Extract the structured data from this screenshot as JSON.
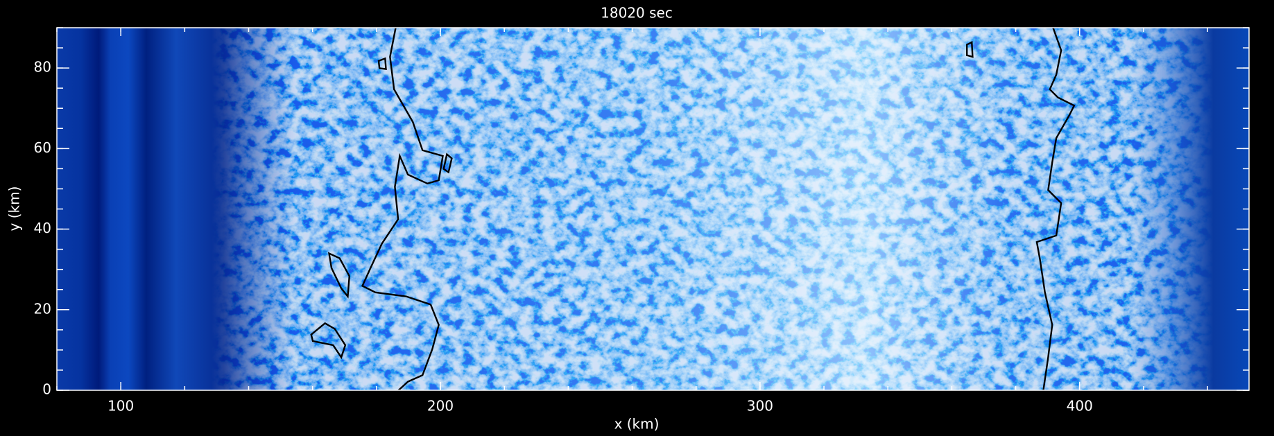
{
  "chart_data": {
    "type": "heatmap",
    "title": "18020 sec",
    "xlabel": "x (km)",
    "ylabel": "y (km)",
    "xlim": [
      80,
      453
    ],
    "ylim": [
      0,
      90
    ],
    "xticks": [
      100,
      200,
      300,
      400
    ],
    "yticks": [
      0,
      20,
      40,
      60,
      80
    ]
  }
}
